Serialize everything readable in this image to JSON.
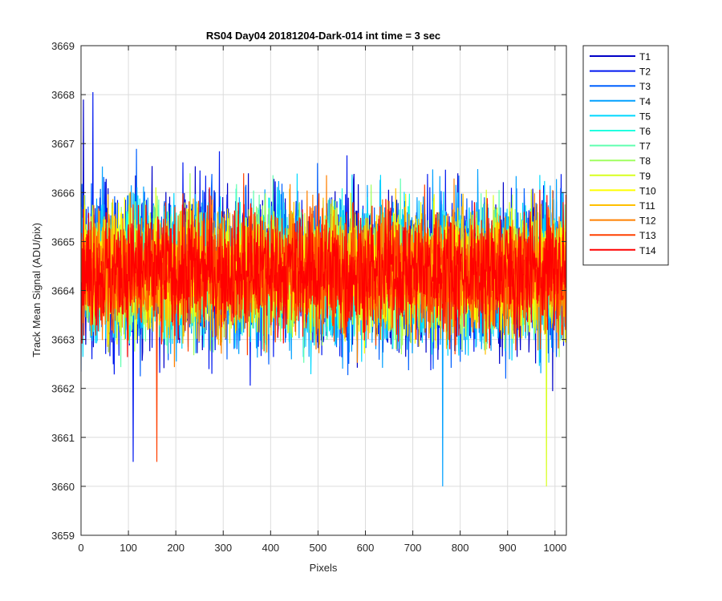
{
  "chart_data": {
    "type": "line",
    "title": "RS04 Day04 20181204-Dark-014 int time = 3 sec",
    "xlabel": "Pixels",
    "ylabel": "Track Mean Signal (ADU/pix)",
    "xlim": [
      0,
      1024
    ],
    "ylim": [
      3659,
      3669
    ],
    "xticks": [
      0,
      100,
      200,
      300,
      400,
      500,
      600,
      700,
      800,
      900,
      1000
    ],
    "yticks": [
      3659,
      3660,
      3661,
      3662,
      3663,
      3664,
      3665,
      3666,
      3667,
      3668,
      3669
    ],
    "grid": true,
    "legend_position": "outside-top-right",
    "series_summary": {
      "n_points_per_series": 1024,
      "mean": 3664.4,
      "typical_range": [
        3661.5,
        3667.2
      ],
      "extremes": {
        "T2_max": {
          "x": 25,
          "y": 3668.05
        },
        "T1_max": {
          "x": 5,
          "y": 3667.9
        },
        "T9_min": {
          "x": 982,
          "y": 3659.75
        },
        "T4_min": {
          "x": 763,
          "y": 3659.8
        },
        "T2_min": {
          "x": 110,
          "y": 3660.5
        },
        "T13_min": {
          "x": 160,
          "y": 3660.5
        }
      }
    },
    "series": [
      {
        "name": "T1",
        "color": "#0000c8"
      },
      {
        "name": "T2",
        "color": "#0018f0"
      },
      {
        "name": "T3",
        "color": "#0060ff"
      },
      {
        "name": "T4",
        "color": "#00a0ff"
      },
      {
        "name": "T5",
        "color": "#00d8ff"
      },
      {
        "name": "T6",
        "color": "#20ffe0"
      },
      {
        "name": "T7",
        "color": "#60ffb0"
      },
      {
        "name": "T8",
        "color": "#a0ff60"
      },
      {
        "name": "T9",
        "color": "#d8ff20"
      },
      {
        "name": "T10",
        "color": "#ffff00"
      },
      {
        "name": "T11",
        "color": "#ffc000"
      },
      {
        "name": "T12",
        "color": "#ff8000"
      },
      {
        "name": "T13",
        "color": "#ff4000"
      },
      {
        "name": "T14",
        "color": "#ff0000"
      }
    ]
  }
}
